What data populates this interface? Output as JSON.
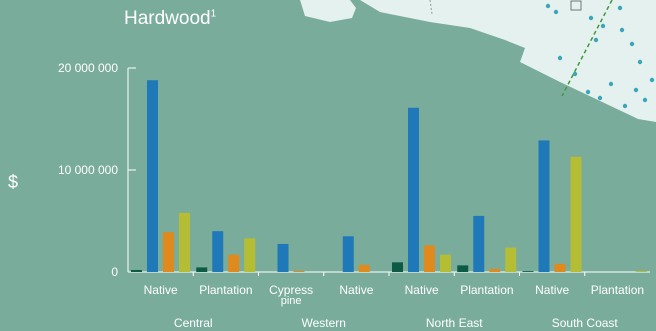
{
  "chart_data": {
    "type": "bar",
    "title": "Hardwood",
    "title_superscript": "1",
    "ylabel": "$",
    "ylim": [
      0,
      20000000
    ],
    "yticks": [
      0,
      10000000,
      20000000
    ],
    "ytick_labels": [
      "0",
      "10 000 000",
      "20 000 000"
    ],
    "categories": [
      "Native",
      "Plantation",
      "Cypress pine",
      "Native",
      "Native",
      "Plantation",
      "Native",
      "Plantation"
    ],
    "category_display": [
      [
        "Native"
      ],
      [
        "Plantation"
      ],
      [
        "Cypress",
        "pine"
      ],
      [
        "Native"
      ],
      [
        "Native"
      ],
      [
        "Plantation"
      ],
      [
        "Native"
      ],
      [
        "Plantation"
      ]
    ],
    "groups": [
      {
        "label": "Central",
        "categories": [
          0,
          1
        ]
      },
      {
        "label": "Western",
        "categories": [
          2,
          3
        ]
      },
      {
        "label": "North East",
        "categories": [
          4,
          5
        ]
      },
      {
        "label": "South Coast",
        "categories": [
          6,
          7
        ]
      }
    ],
    "series": [
      {
        "color": "#0d5a45",
        "values": [
          200000,
          450000,
          0,
          0,
          950000,
          650000,
          80000,
          0
        ]
      },
      {
        "color": "#1f78b8",
        "values": [
          18800000,
          4000000,
          2750000,
          3500000,
          16100000,
          5500000,
          12900000,
          0
        ]
      },
      {
        "color": "#e08a1e",
        "values": [
          3900000,
          1700000,
          100000,
          700000,
          2600000,
          300000,
          800000,
          0
        ]
      },
      {
        "color": "#b5bd35",
        "values": [
          5800000,
          3300000,
          0,
          0,
          1700000,
          2400000,
          11300000,
          100000
        ]
      }
    ],
    "grid": false,
    "legend": "none"
  },
  "colors": {
    "background": "#7aac9c",
    "axis": "#ffffff",
    "text": "#ffffff",
    "map_land": "#e4f1ee",
    "map_marks": "#3aa6b8",
    "map_dash": "#3d9a3d"
  }
}
